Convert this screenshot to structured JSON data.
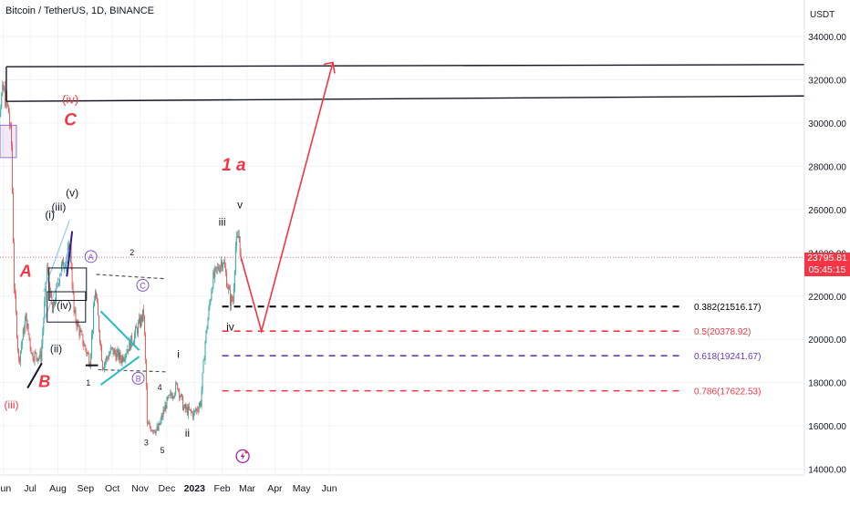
{
  "header": {
    "symbol_line": "Bitcoin / TetherUS, 1D, BINANCE"
  },
  "axis": {
    "currency": "USDT",
    "y_ticks": [
      "34000.00",
      "32000.00",
      "30000.00",
      "28000.00",
      "26000.00",
      "24000.00",
      "22000.00",
      "20000.00",
      "18000.00",
      "16000.00",
      "14000.00"
    ],
    "x_ticks": [
      "Jun",
      "Jul",
      "Aug",
      "Sep",
      "Oct",
      "Nov",
      "Dec",
      "2023",
      "Feb",
      "Mar",
      "Apr",
      "May",
      "Jun"
    ]
  },
  "last_price": {
    "price": "23795.81",
    "countdown": "05:45:15"
  },
  "fib_levels": [
    {
      "label": "0.382(21516.17)",
      "value": 21516.17,
      "color": "#000000"
    },
    {
      "label": "0.5(20378.92)",
      "value": 20378.92,
      "color": "#f23645"
    },
    {
      "label": "0.618(19241.67)",
      "value": 19241.67,
      "color": "#673ab7"
    },
    {
      "label": "0.786(17622.53)",
      "value": 17622.53,
      "color": "#f23645"
    }
  ],
  "wave_labels": {
    "big_A": "A",
    "big_B": "B",
    "big_C": "C",
    "iv_red": "(iv)",
    "iii_red": "(iii)",
    "i_paren": "(i)",
    "iii_paren": "(iii)",
    "v_paren": "(v)",
    "iv_paren": "(iv)",
    "ii_paren": "(ii)",
    "circ_A": "A",
    "circ_B": "B",
    "circ_C": "C",
    "n1": "1",
    "n2": "2",
    "n3": "3",
    "n4": "4",
    "n5": "5",
    "r_i": "i",
    "r_ii": "ii",
    "r_iii": "iii",
    "r_iv": "iv",
    "r_v": "v",
    "one_a": "1 a"
  },
  "colors": {
    "up": "#26a69a",
    "down": "#ef5350",
    "projection": "#f23645",
    "triangle": "#26bcc6",
    "grid": "#f0f3fa"
  },
  "chart_data": {
    "type": "candlestick",
    "title": "Bitcoin / TetherUS, 1D, BINANCE",
    "ylabel": "USDT",
    "ylim": [
      14000,
      35000
    ],
    "x_range": [
      "2022-05-20",
      "2023-06-25"
    ],
    "path_points": [
      [
        "2022-05-20",
        29500
      ],
      [
        "2022-06-01",
        31500
      ],
      [
        "2022-06-07",
        30500
      ],
      [
        "2022-06-10",
        29000
      ],
      [
        "2022-06-13",
        22500
      ],
      [
        "2022-06-18",
        19000
      ],
      [
        "2022-06-26",
        21000
      ],
      [
        "2022-07-03",
        19300
      ],
      [
        "2022-07-13",
        19200
      ],
      [
        "2022-07-20",
        23300
      ],
      [
        "2022-07-26",
        21200
      ],
      [
        "2022-08-03",
        23100
      ],
      [
        "2022-08-10",
        23800
      ],
      [
        "2022-08-15",
        24200
      ],
      [
        "2022-08-19",
        21200
      ],
      [
        "2022-08-28",
        20000
      ],
      [
        "2022-09-06",
        19000
      ],
      [
        "2022-09-12",
        22300
      ],
      [
        "2022-09-20",
        18800
      ],
      [
        "2022-09-30",
        19500
      ],
      [
        "2022-10-11",
        19100
      ],
      [
        "2022-10-25",
        20100
      ],
      [
        "2022-11-05",
        21200
      ],
      [
        "2022-11-08",
        17800
      ],
      [
        "2022-11-09",
        16000
      ],
      [
        "2022-11-21",
        15800
      ],
      [
        "2022-11-30",
        17000
      ],
      [
        "2022-12-13",
        17900
      ],
      [
        "2022-12-20",
        16800
      ],
      [
        "2022-12-31",
        16550
      ],
      [
        "2023-01-08",
        17100
      ],
      [
        "2023-01-13",
        19900
      ],
      [
        "2023-01-21",
        22700
      ],
      [
        "2023-01-30",
        23500
      ],
      [
        "2023-02-02",
        23700
      ],
      [
        "2023-02-10",
        21800
      ],
      [
        "2023-02-13",
        21800
      ],
      [
        "2023-02-16",
        24300
      ],
      [
        "2023-02-20",
        24800
      ],
      [
        "2023-02-22",
        23795.81
      ]
    ],
    "projection": [
      [
        "2023-02-22",
        23795.81
      ],
      [
        "2023-03-17",
        20378.92
      ],
      [
        "2023-06-05",
        32800
      ]
    ],
    "resistance_lines": [
      {
        "name": "upper",
        "from": [
          "2022-05-23",
          32600
        ],
        "to": [
          "2023-06-25",
          32700
        ]
      },
      {
        "name": "lower",
        "from": [
          "2022-05-23",
          31000
        ],
        "to": [
          "2023-06-25",
          31250
        ]
      }
    ],
    "fibonacci": [
      {
        "ratio": 0.382,
        "value": 21516.17
      },
      {
        "ratio": 0.5,
        "value": 20378.92
      },
      {
        "ratio": 0.618,
        "value": 19241.67
      },
      {
        "ratio": 0.786,
        "value": 17622.53
      }
    ],
    "last_price": 23795.81,
    "grid": true
  }
}
